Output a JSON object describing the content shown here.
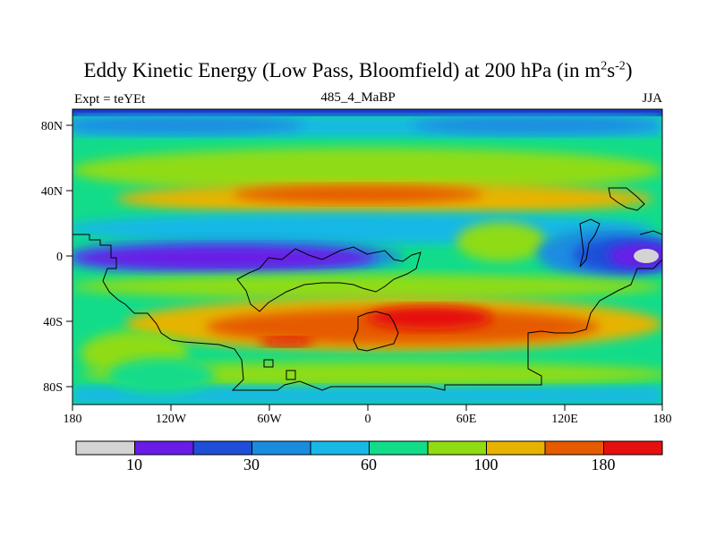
{
  "title": {
    "main": "Eddy Kinetic Energy (Low Pass, Bloomfield) at 200 hPa (in m",
    "sup1": "2",
    "mid": "s",
    "sup2": "-2",
    "end": ")"
  },
  "subtitle": {
    "left": "Expt = teYEt",
    "center": "485_4_MaBP",
    "right": "JJA"
  },
  "map": {
    "projection": "cylindrical-equidistant",
    "lon_range": [
      -180,
      180
    ],
    "lat_range": [
      -90,
      90
    ],
    "lon_tick_labels": [
      "180",
      "120W",
      "60W",
      "0",
      "60E",
      "120E",
      "180"
    ],
    "lat_tick_labels": [
      "80N",
      "40N",
      "0",
      "40S",
      "80S"
    ],
    "field": "eddy kinetic energy",
    "units": "m^2 s^-2"
  },
  "colorbar": {
    "colors": [
      "#d3d3d3",
      "#6a1be6",
      "#1f4fd9",
      "#1a8ce0",
      "#18b8e6",
      "#12dc8a",
      "#8fdc12",
      "#e6b400",
      "#e65a00",
      "#e60f0f"
    ],
    "labels": [
      "10",
      "30",
      "60",
      "100",
      "180"
    ]
  }
}
